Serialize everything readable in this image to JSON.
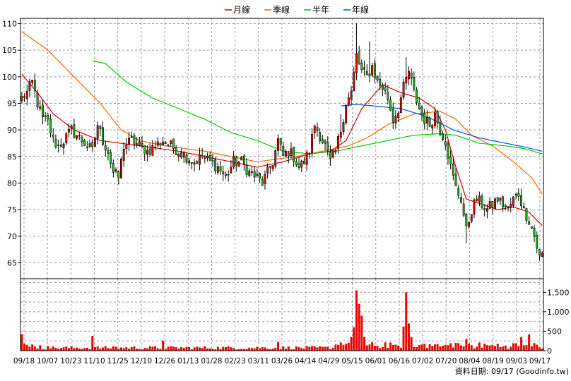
{
  "chart_data": {
    "type": "candlestick",
    "legend": [
      {
        "name": "月線",
        "color": "#d80000"
      },
      {
        "name": "季線",
        "color": "#ff6600"
      },
      {
        "name": "半年",
        "color": "#00cc00"
      },
      {
        "name": "年線",
        "color": "#0055dd"
      }
    ],
    "price_axis": {
      "range": [
        62,
        111
      ],
      "ticks": [
        65,
        70,
        75,
        80,
        85,
        90,
        95,
        100,
        105,
        110
      ]
    },
    "volume_axis": {
      "range": [
        0,
        1850
      ],
      "ticks": [
        0,
        500,
        1000,
        1500
      ],
      "tick_labels": [
        "0",
        "500",
        "1,000",
        "1,500"
      ]
    },
    "date_labels": [
      "09/18",
      "10/07",
      "10/23",
      "11/10",
      "11/25",
      "12/10",
      "12/26",
      "01/13",
      "01/28",
      "02/23",
      "03/11",
      "03/26",
      "04/14",
      "04/29",
      "05/15",
      "06/01",
      "06/16",
      "07/02",
      "07/20",
      "08/04",
      "08/19",
      "09/03",
      "09/17"
    ],
    "footer": "資料日期: 09/17  (Goodinfo.tw)",
    "price_anchors": [
      [
        0,
        96
      ],
      [
        2,
        97
      ],
      [
        4,
        99
      ],
      [
        6,
        95
      ],
      [
        8,
        92
      ],
      [
        10,
        91.5
      ],
      [
        12,
        88
      ],
      [
        14,
        87
      ],
      [
        16,
        88
      ],
      [
        19,
        90
      ],
      [
        23,
        88
      ],
      [
        27,
        86
      ],
      [
        29,
        91
      ],
      [
        31,
        88
      ],
      [
        33,
        86
      ],
      [
        35,
        82
      ],
      [
        37,
        81
      ],
      [
        39,
        87
      ],
      [
        42,
        88
      ],
      [
        45,
        87
      ],
      [
        48,
        86
      ],
      [
        51,
        87
      ],
      [
        54,
        88
      ],
      [
        57,
        87
      ],
      [
        60,
        86
      ],
      [
        63,
        85
      ],
      [
        66,
        84
      ],
      [
        69,
        85
      ],
      [
        72,
        84
      ],
      [
        75,
        83
      ],
      [
        78,
        81
      ],
      [
        81,
        84
      ],
      [
        84,
        84
      ],
      [
        87,
        82
      ],
      [
        90,
        81
      ],
      [
        92,
        80
      ],
      [
        94,
        82
      ],
      [
        96,
        84
      ],
      [
        98,
        88
      ],
      [
        100,
        85
      ],
      [
        102,
        86
      ],
      [
        104,
        85
      ],
      [
        106,
        83
      ],
      [
        108,
        84
      ],
      [
        110,
        86
      ],
      [
        112,
        91
      ],
      [
        114,
        89
      ],
      [
        116,
        87
      ],
      [
        118,
        84
      ],
      [
        120,
        86
      ],
      [
        122,
        90
      ],
      [
        124,
        95
      ],
      [
        126,
        97
      ],
      [
        128,
        104
      ],
      [
        130,
        101
      ],
      [
        132,
        100
      ],
      [
        134,
        102
      ],
      [
        136,
        99
      ],
      [
        138,
        98
      ],
      [
        140,
        96
      ],
      [
        142,
        92
      ],
      [
        144,
        94
      ],
      [
        146,
        98
      ],
      [
        148,
        101
      ],
      [
        150,
        97
      ],
      [
        152,
        94
      ],
      [
        154,
        92
      ],
      [
        156,
        91
      ],
      [
        158,
        93
      ],
      [
        160,
        90
      ],
      [
        162,
        88
      ],
      [
        164,
        83
      ],
      [
        166,
        79
      ],
      [
        168,
        77
      ],
      [
        170,
        71
      ],
      [
        172,
        75
      ],
      [
        174,
        77
      ],
      [
        176,
        76
      ],
      [
        178,
        75
      ],
      [
        180,
        76
      ],
      [
        182,
        77
      ],
      [
        184,
        76
      ],
      [
        186,
        75
      ],
      [
        188,
        77
      ],
      [
        190,
        78
      ],
      [
        192,
        75
      ],
      [
        194,
        73
      ],
      [
        196,
        70
      ],
      [
        198,
        66
      ],
      [
        199,
        66.5
      ]
    ],
    "volume_spikes": [
      [
        0,
        420
      ],
      [
        1,
        180
      ],
      [
        2,
        150
      ],
      [
        4,
        160
      ],
      [
        7,
        140
      ],
      [
        10,
        120
      ],
      [
        27,
        380
      ],
      [
        35,
        110
      ],
      [
        54,
        260
      ],
      [
        98,
        220
      ],
      [
        126,
        350
      ],
      [
        127,
        600
      ],
      [
        128,
        1550
      ],
      [
        129,
        1200
      ],
      [
        130,
        900
      ],
      [
        131,
        350
      ],
      [
        146,
        620
      ],
      [
        147,
        1500
      ],
      [
        148,
        700
      ],
      [
        149,
        350
      ],
      [
        166,
        200
      ],
      [
        170,
        300
      ],
      [
        191,
        350
      ],
      [
        194,
        420
      ]
    ],
    "ma_anchors": {
      "月線": [
        [
          0,
          100.5
        ],
        [
          6,
          97
        ],
        [
          12,
          93
        ],
        [
          20,
          90
        ],
        [
          30,
          88
        ],
        [
          45,
          87
        ],
        [
          60,
          86
        ],
        [
          75,
          84.5
        ],
        [
          90,
          83
        ],
        [
          100,
          84
        ],
        [
          110,
          85.5
        ],
        [
          118,
          86
        ],
        [
          124,
          88
        ],
        [
          130,
          94
        ],
        [
          138,
          98.5
        ],
        [
          145,
          97
        ],
        [
          152,
          96
        ],
        [
          158,
          94
        ],
        [
          162,
          90
        ],
        [
          166,
          83
        ],
        [
          170,
          77
        ],
        [
          176,
          76
        ],
        [
          182,
          75
        ],
        [
          188,
          75.5
        ],
        [
          194,
          74.5
        ],
        [
          199,
          72
        ]
      ],
      "季線": [
        [
          0,
          108.5
        ],
        [
          10,
          105
        ],
        [
          20,
          100
        ],
        [
          30,
          95
        ],
        [
          38,
          90
        ],
        [
          45,
          88
        ],
        [
          55,
          87
        ],
        [
          70,
          86
        ],
        [
          90,
          84
        ],
        [
          105,
          85
        ],
        [
          115,
          86
        ],
        [
          125,
          87
        ],
        [
          132,
          88.5
        ],
        [
          140,
          91
        ],
        [
          150,
          93
        ],
        [
          160,
          93.5
        ],
        [
          166,
          92
        ],
        [
          172,
          89
        ],
        [
          180,
          87
        ],
        [
          188,
          84
        ],
        [
          195,
          81
        ],
        [
          199,
          78
        ]
      ],
      "半年": [
        [
          27,
          103
        ],
        [
          32,
          102.5
        ],
        [
          40,
          99
        ],
        [
          50,
          96
        ],
        [
          60,
          94
        ],
        [
          70,
          92
        ],
        [
          80,
          89.5
        ],
        [
          90,
          88
        ],
        [
          100,
          86
        ],
        [
          110,
          85.5
        ],
        [
          120,
          86
        ],
        [
          130,
          87
        ],
        [
          140,
          88
        ],
        [
          150,
          89
        ],
        [
          160,
          89.3
        ],
        [
          166,
          89
        ],
        [
          175,
          87.5
        ],
        [
          185,
          87
        ],
        [
          192,
          86.5
        ],
        [
          199,
          85.5
        ]
      ],
      "年線": [
        [
          122,
          94.5
        ],
        [
          128,
          94.8
        ],
        [
          135,
          94.5
        ],
        [
          145,
          94
        ],
        [
          155,
          92.5
        ],
        [
          165,
          90
        ],
        [
          175,
          88.5
        ],
        [
          185,
          87.5
        ],
        [
          192,
          86.8
        ],
        [
          199,
          86
        ]
      ]
    }
  }
}
